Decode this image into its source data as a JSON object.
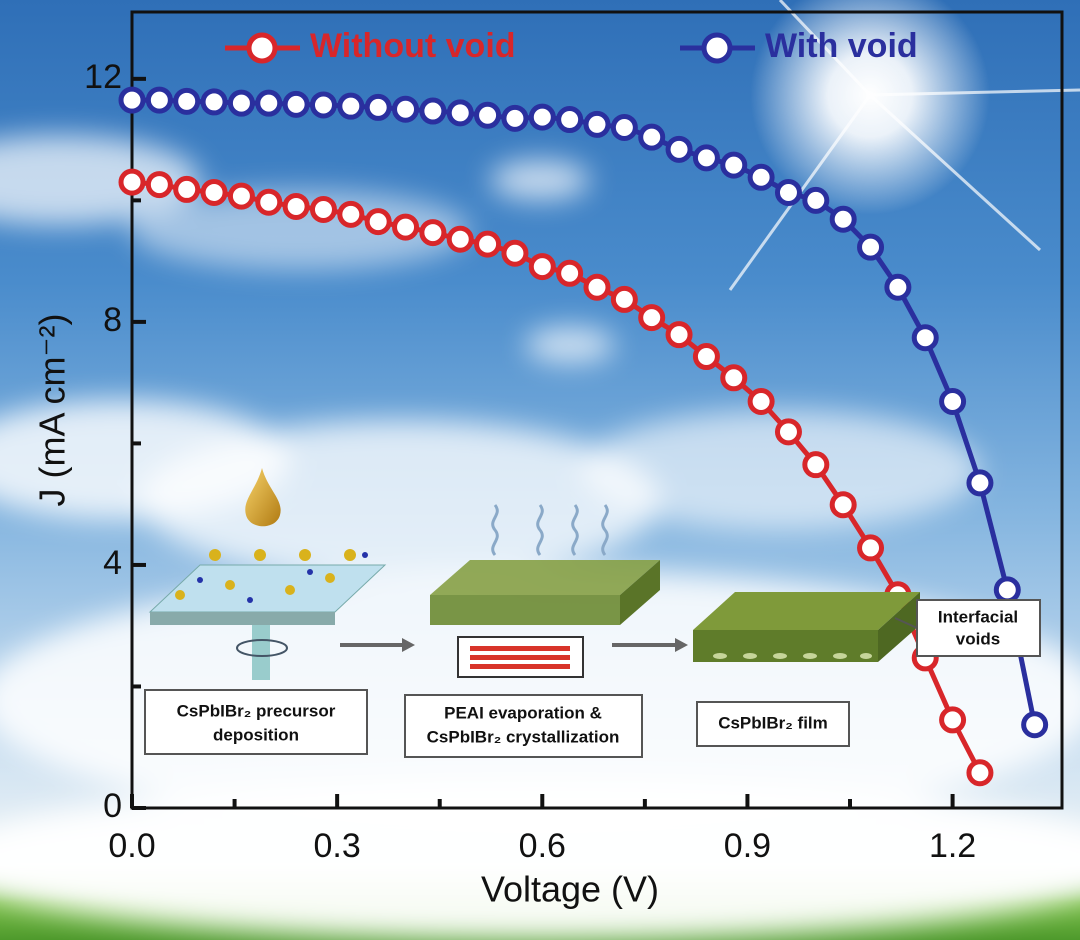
{
  "chart_data": {
    "type": "line",
    "x_label": "Voltage (V)",
    "y_label": "J (mA cm⁻²)",
    "xlim": [
      0,
      1.36
    ],
    "ylim": [
      0,
      13.1
    ],
    "xticks": [
      {
        "value": 0,
        "label": "0.0"
      },
      0.3,
      0.6,
      0.9,
      1.2
    ],
    "xminorticks": [
      0.15,
      0.45,
      0.75,
      1.05
    ],
    "yticks": [
      0,
      4,
      8,
      12
    ],
    "yminorticks": [
      2,
      6,
      10
    ],
    "legend": "top",
    "series": [
      {
        "name": "Without void",
        "color": "#d8262a",
        "x": [
          0,
          0.04,
          0.08,
          0.12,
          0.16,
          0.2,
          0.24,
          0.28,
          0.32,
          0.36,
          0.4,
          0.44,
          0.48,
          0.52,
          0.56,
          0.6,
          0.64,
          0.68,
          0.72,
          0.76,
          0.8,
          0.84,
          0.88,
          0.92,
          0.96,
          1.0,
          1.04,
          1.08,
          1.12,
          1.16,
          1.2,
          1.24
        ],
        "values": [
          10.3,
          10.26,
          10.18,
          10.13,
          10.07,
          9.97,
          9.9,
          9.85,
          9.77,
          9.65,
          9.56,
          9.47,
          9.36,
          9.28,
          9.13,
          8.91,
          8.8,
          8.57,
          8.37,
          8.07,
          7.79,
          7.43,
          7.08,
          6.69,
          6.19,
          5.65,
          4.99,
          4.28,
          3.51,
          2.47,
          1.45,
          0.58
        ]
      },
      {
        "name": "With void",
        "color": "#2a2f9e",
        "x": [
          0,
          0.04,
          0.08,
          0.12,
          0.16,
          0.2,
          0.24,
          0.28,
          0.32,
          0.36,
          0.4,
          0.44,
          0.48,
          0.52,
          0.56,
          0.6,
          0.64,
          0.68,
          0.72,
          0.76,
          0.8,
          0.84,
          0.88,
          0.92,
          0.96,
          1.0,
          1.04,
          1.08,
          1.12,
          1.16,
          1.2,
          1.24,
          1.28,
          1.32
        ],
        "values": [
          11.65,
          11.65,
          11.63,
          11.62,
          11.6,
          11.6,
          11.58,
          11.57,
          11.55,
          11.53,
          11.5,
          11.47,
          11.44,
          11.4,
          11.35,
          11.37,
          11.33,
          11.25,
          11.2,
          11.04,
          10.84,
          10.7,
          10.58,
          10.38,
          10.13,
          10.0,
          9.69,
          9.23,
          8.57,
          7.74,
          6.69,
          5.35,
          3.59,
          1.37
        ]
      }
    ]
  },
  "inset": {
    "steps": [
      [
        "CsPbIBr₂ precursor",
        "deposition"
      ],
      [
        "PEAI evaporation &",
        "CsPbIBr₂ crystallization"
      ],
      [
        "CsPbIBr₂ film"
      ]
    ],
    "callout": [
      "Interfacial",
      "voids"
    ]
  }
}
